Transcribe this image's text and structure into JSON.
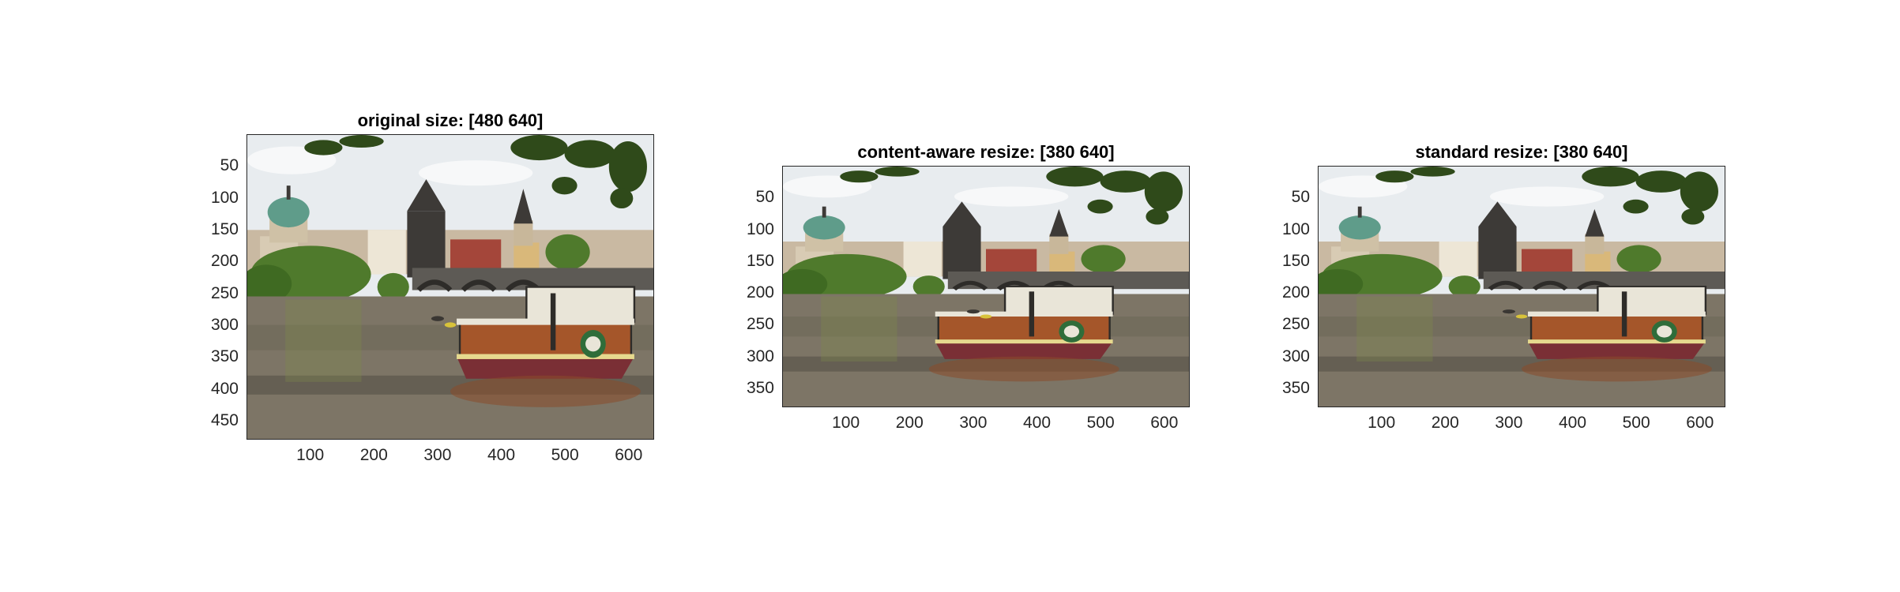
{
  "figure": {
    "panels": [
      {
        "title": "original size: [480 640]",
        "image_rows": 480,
        "image_cols": 640,
        "y_ticks": [
          "50",
          "100",
          "150",
          "200",
          "250",
          "300",
          "350",
          "400",
          "450"
        ],
        "y_tick_values": [
          50,
          100,
          150,
          200,
          250,
          300,
          350,
          400,
          450
        ],
        "x_ticks": [
          "100",
          "200",
          "300",
          "400",
          "500",
          "600"
        ],
        "x_tick_values": [
          100,
          200,
          300,
          400,
          500,
          600
        ],
        "image_subject": "river scene with a tour boat, stone bridge, towers and domes under tree branches"
      },
      {
        "title": "content-aware resize: [380 640]",
        "image_rows": 380,
        "image_cols": 640,
        "y_ticks": [
          "50",
          "100",
          "150",
          "200",
          "250",
          "300",
          "350"
        ],
        "y_tick_values": [
          50,
          100,
          150,
          200,
          250,
          300,
          350
        ],
        "x_ticks": [
          "100",
          "200",
          "300",
          "400",
          "500",
          "600"
        ],
        "x_tick_values": [
          100,
          200,
          300,
          400,
          500,
          600
        ],
        "image_subject": "river scene with vertical seams removed, boat and bridge retained"
      },
      {
        "title": "standard resize: [380 640]",
        "image_rows": 380,
        "image_cols": 640,
        "y_ticks": [
          "50",
          "100",
          "150",
          "200",
          "250",
          "300",
          "350"
        ],
        "y_tick_values": [
          50,
          100,
          150,
          200,
          250,
          300,
          350
        ],
        "x_ticks": [
          "100",
          "200",
          "300",
          "400",
          "500",
          "600"
        ],
        "x_tick_values": [
          100,
          200,
          300,
          400,
          500,
          600
        ],
        "image_subject": "river scene uniformly squashed vertically"
      }
    ],
    "colors": {
      "sky": "#e8ecef",
      "cloud": "#f7f8f9",
      "water": "#7d7566",
      "water_dark": "#4e4a40",
      "trees": "#4f7a2c",
      "leaves": "#2f4a1a",
      "bridge": "#5d5a55",
      "tower": "#3d3a37",
      "buildings": "#c9b9a2",
      "roof_red": "#a4463a",
      "dome": "#5f9c8a",
      "boat_hull": "#7a2f35",
      "boat_wood": "#a5562a",
      "boat_white": "#e9e5d8",
      "axis": "#262626"
    }
  }
}
